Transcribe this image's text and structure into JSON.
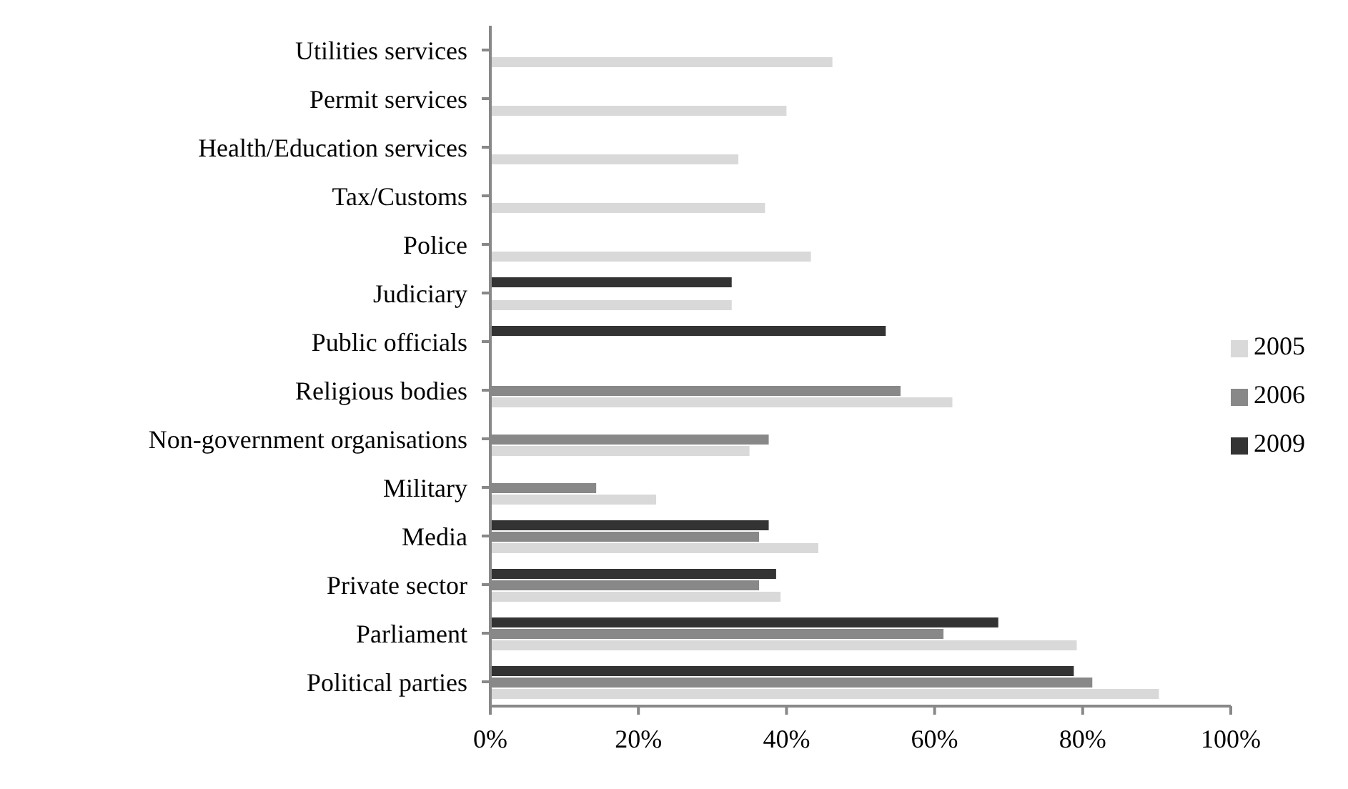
{
  "chart_data": {
    "type": "bar",
    "orientation": "horizontal",
    "categories": [
      "Utilities services",
      "Permit services",
      "Health/Education services",
      "Tax/Customs",
      "Police",
      "Judiciary",
      "Public officials",
      "Religious bodies",
      "Non-government organisations",
      "Military",
      "Media",
      "Private sector",
      "Parliament",
      "Political parties"
    ],
    "series": [
      {
        "name": "2009",
        "color": "#333333",
        "values": [
          null,
          null,
          null,
          null,
          null,
          32.6,
          53.4,
          null,
          null,
          null,
          37.6,
          38.6,
          68.6,
          78.8
        ]
      },
      {
        "name": "2006",
        "color": "#888888",
        "values": [
          null,
          null,
          null,
          null,
          null,
          null,
          null,
          55.4,
          37.6,
          14.3,
          36.3,
          36.3,
          61.2,
          81.3
        ]
      },
      {
        "name": "2005",
        "color": "#d9d9d9",
        "values": [
          46.2,
          40,
          33.5,
          37.1,
          43.3,
          32.6,
          null,
          62.4,
          35,
          22.4,
          44.3,
          39.2,
          79.2,
          90.3
        ]
      }
    ],
    "xlim": [
      0,
      100
    ],
    "xticks": [
      {
        "value": 0,
        "label": "0%"
      },
      {
        "value": 20,
        "label": "20%"
      },
      {
        "value": 40,
        "label": "40%"
      },
      {
        "value": 60,
        "label": "60%"
      },
      {
        "value": 80,
        "label": "80%"
      },
      {
        "value": 100,
        "label": "100%"
      }
    ],
    "grid": false,
    "legend": "right"
  }
}
